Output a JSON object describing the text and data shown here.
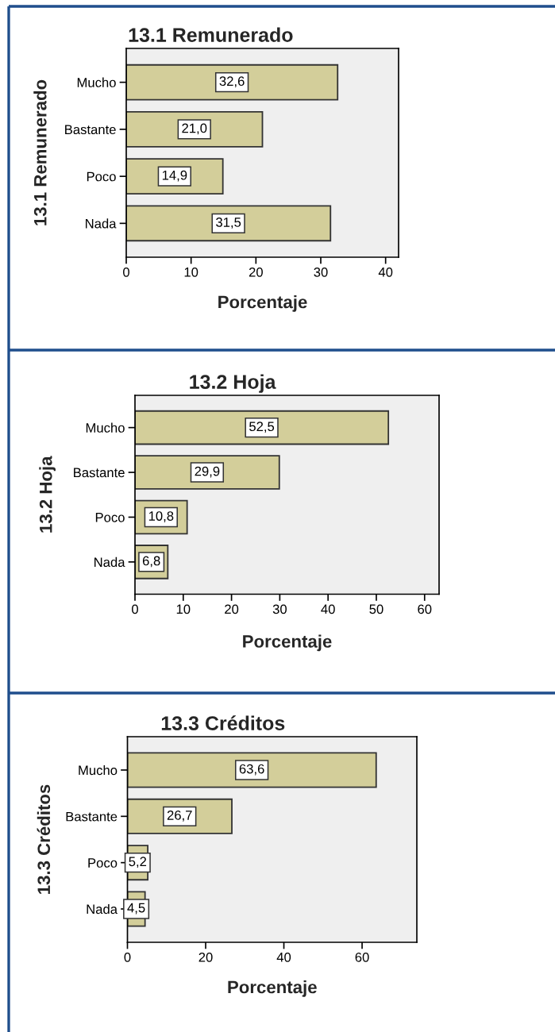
{
  "chart_data": [
    {
      "type": "bar",
      "orientation": "horizontal",
      "title": "13.1 Remunerado",
      "ylabel": "13.1 Remunerado",
      "xlabel": "Porcentaje",
      "categories": [
        "Mucho",
        "Bastante",
        "Poco",
        "Nada"
      ],
      "values": [
        32.6,
        21.0,
        14.9,
        31.5
      ],
      "value_labels": [
        "32,6",
        "21,0",
        "14,9",
        "31,5"
      ],
      "color": "#d3ce9a",
      "xlim": [
        0,
        42
      ],
      "xticks": [
        0,
        10,
        20,
        30,
        40
      ]
    },
    {
      "type": "bar",
      "orientation": "horizontal",
      "title": "13.2 Hoja",
      "ylabel": "13.2 Hoja",
      "xlabel": "Porcentaje",
      "categories": [
        "Mucho",
        "Bastante",
        "Poco",
        "Nada"
      ],
      "values": [
        52.5,
        29.9,
        10.8,
        6.8
      ],
      "value_labels": [
        "52,5",
        "29,9",
        "10,8",
        "6,8"
      ],
      "color": "#d3ce9a",
      "xlim": [
        0,
        63
      ],
      "xticks": [
        0,
        10,
        20,
        30,
        40,
        50,
        60
      ]
    },
    {
      "type": "bar",
      "orientation": "horizontal",
      "title": "13.3 Créditos",
      "ylabel": "13.3 Créditos",
      "xlabel": "Porcentaje",
      "categories": [
        "Mucho",
        "Bastante",
        "Poco",
        "Nada"
      ],
      "values": [
        63.6,
        26.7,
        5.2,
        4.5
      ],
      "value_labels": [
        "63,6",
        "26,7",
        "5,2",
        "4,5"
      ],
      "color": "#d3ce9a",
      "xlim": [
        0,
        74
      ],
      "xticks": [
        0,
        20,
        40,
        60
      ]
    }
  ]
}
